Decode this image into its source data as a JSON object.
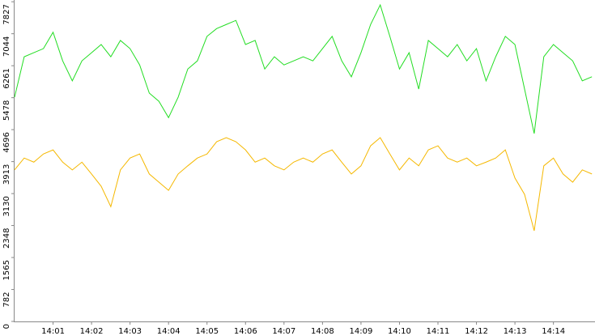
{
  "chart_data": {
    "type": "line",
    "x": [
      0,
      0.25,
      0.5,
      0.75,
      1,
      1.25,
      1.5,
      1.75,
      2,
      2.25,
      2.5,
      2.75,
      3,
      3.25,
      3.5,
      3.75,
      4,
      4.25,
      4.5,
      4.75,
      5,
      5.25,
      5.5,
      5.75,
      6,
      6.25,
      6.5,
      6.75,
      7,
      7.25,
      7.5,
      7.75,
      8,
      8.25,
      8.5,
      8.75,
      9,
      9.25,
      9.5,
      9.75,
      10,
      10.25,
      10.5,
      10.75,
      11,
      11.25,
      11.5,
      11.75,
      12,
      12.25,
      12.5,
      12.75,
      13,
      13.25,
      13.5,
      13.75,
      14,
      14.25,
      14.5,
      14.75,
      15
    ],
    "series": [
      {
        "color": "#22dd22",
        "values": [
          5490,
          6480,
          6580,
          6680,
          7080,
          6380,
          5890,
          6380,
          6580,
          6780,
          6480,
          6880,
          6680,
          6280,
          5590,
          5390,
          4990,
          5490,
          6180,
          6380,
          6980,
          7170,
          7270,
          7370,
          6780,
          6880,
          6180,
          6480,
          6280,
          6380,
          6480,
          6380,
          6680,
          6980,
          6380,
          5990,
          6580,
          7270,
          7750,
          6980,
          6180,
          6580,
          5690,
          6880,
          6680,
          6480,
          6780,
          6380,
          6680,
          5890,
          6480,
          6980,
          6780,
          5690,
          4600,
          6480,
          6780,
          6580,
          6380,
          5890,
          5990
        ]
      },
      {
        "color": "#f5b800",
        "values": [
          3710,
          4000,
          3900,
          4100,
          4200,
          3900,
          3710,
          3900,
          3610,
          3310,
          2810,
          3710,
          4000,
          4100,
          3610,
          3410,
          3210,
          3610,
          3810,
          4000,
          4100,
          4400,
          4500,
          4400,
          4200,
          3900,
          4000,
          3810,
          3710,
          3900,
          4000,
          3900,
          4100,
          4200,
          3900,
          3610,
          3810,
          4300,
          4500,
          4100,
          3710,
          4000,
          3810,
          4200,
          4300,
          4000,
          3900,
          4000,
          3810,
          3900,
          4000,
          4200,
          3510,
          3110,
          2220,
          3810,
          4000,
          3610,
          3410,
          3710,
          3610
        ]
      }
    ],
    "xlim": [
      0,
      15.08
    ],
    "xticks": [
      {
        "value": 1,
        "label": "14:01"
      },
      {
        "value": 2,
        "label": "14:02"
      },
      {
        "value": 3,
        "label": "14:03"
      },
      {
        "value": 4,
        "label": "14:04"
      },
      {
        "value": 5,
        "label": "14:05"
      },
      {
        "value": 6,
        "label": "14:06"
      },
      {
        "value": 7,
        "label": "14:07"
      },
      {
        "value": 8,
        "label": "14:08"
      },
      {
        "value": 9,
        "label": "14:09"
      },
      {
        "value": 10,
        "label": "14:10"
      },
      {
        "value": 11,
        "label": "14:11"
      },
      {
        "value": 12,
        "label": "14:12"
      },
      {
        "value": 13,
        "label": "14:13"
      },
      {
        "value": 14,
        "label": "14:14"
      }
    ],
    "ylim": [
      0,
      7870
    ],
    "yticks": [
      0,
      782,
      1565,
      2348,
      3130,
      3913,
      4696,
      5478,
      6261,
      7044,
      7827
    ]
  }
}
